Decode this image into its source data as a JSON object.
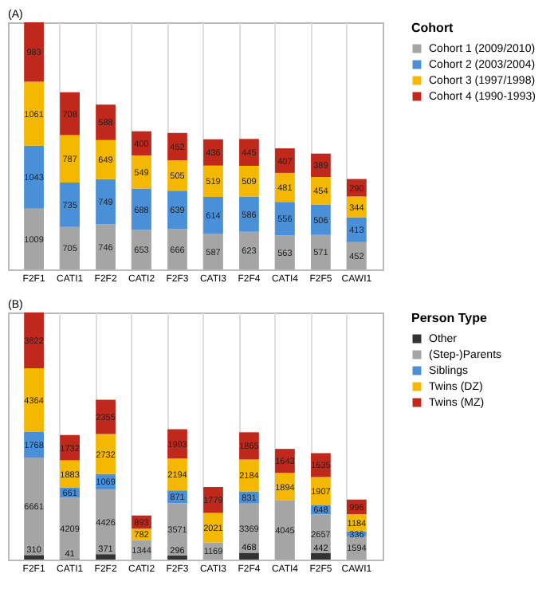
{
  "chart_data": [
    {
      "type": "bar",
      "title": "(A)",
      "legend_title": "Cohort",
      "stacked": true,
      "data_labels": true,
      "grid": "x",
      "legend": "right",
      "categories": [
        "F2F1",
        "CATI1",
        "F2F2",
        "CATI2",
        "F2F3",
        "CATI3",
        "F2F4",
        "CATI4",
        "F2F5",
        "CAWI1"
      ],
      "series": [
        {
          "name": "Cohort 1 (2009/2010)",
          "color": "#a5a5a5",
          "values": [
            1009,
            705,
            746,
            653,
            666,
            587,
            623,
            563,
            571,
            452
          ]
        },
        {
          "name": "Cohort 2 (2003/2004)",
          "color": "#4a90d9",
          "values": [
            1043,
            735,
            749,
            688,
            639,
            614,
            586,
            556,
            506,
            413
          ]
        },
        {
          "name": "Cohort 3 (1997/1998)",
          "color": "#f5b800",
          "values": [
            1061,
            787,
            649,
            549,
            505,
            519,
            509,
            481,
            454,
            344
          ]
        },
        {
          "name": "Cohort 4 (1990-1993)",
          "color": "#c0281c",
          "values": [
            983,
            708,
            588,
            400,
            452,
            436,
            445,
            407,
            389,
            290
          ]
        }
      ]
    },
    {
      "type": "bar",
      "title": "(B)",
      "legend_title": "Person Type",
      "stacked": true,
      "data_labels": true,
      "grid": "x",
      "legend": "right",
      "categories": [
        "F2F1",
        "CATI1",
        "F2F2",
        "CATI2",
        "F2F3",
        "CATI3",
        "F2F4",
        "CATI4",
        "F2F5",
        "CAWI1"
      ],
      "series": [
        {
          "name": "Other",
          "color": "#333333",
          "values": [
            310,
            41,
            371,
            null,
            296,
            null,
            468,
            null,
            442,
            null
          ]
        },
        {
          "name": "(Step-)Parents",
          "color": "#a5a5a5",
          "values": [
            6661,
            4209,
            4426,
            1344,
            3571,
            1169,
            3369,
            4045,
            2657,
            1594
          ]
        },
        {
          "name": "Siblings",
          "color": "#4a90d9",
          "values": [
            1768,
            661,
            1069,
            null,
            871,
            null,
            831,
            null,
            648,
            336
          ]
        },
        {
          "name": "Twins (DZ)",
          "color": "#f5b800",
          "values": [
            4364,
            1883,
            2732,
            782,
            2194,
            2021,
            2184,
            1894,
            1907,
            1184
          ]
        },
        {
          "name": "Twins (MZ)",
          "color": "#c0281c",
          "values": [
            3822,
            1732,
            2355,
            893,
            1993,
            1779,
            1865,
            1643,
            1635,
            996
          ]
        }
      ]
    }
  ]
}
